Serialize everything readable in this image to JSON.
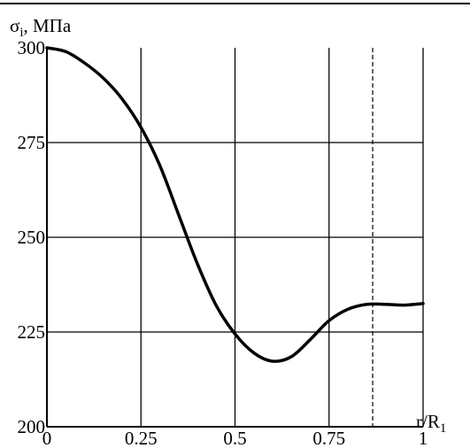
{
  "chart_data": {
    "type": "line",
    "title": "",
    "ylabel": {
      "symbol": "σ",
      "subscript": "i",
      "unit": ", МПа"
    },
    "xlabel": {
      "main": "r/R",
      "subscript": "1"
    },
    "xlim": [
      0,
      1
    ],
    "ylim": [
      200,
      300
    ],
    "x_ticks": [
      0,
      0.25,
      0.5,
      0.75,
      1
    ],
    "x_tick_labels": [
      "0",
      "0.25",
      "0.5",
      "0.75",
      "1"
    ],
    "y_ticks": [
      200,
      225,
      250,
      275,
      300
    ],
    "y_tick_labels": [
      "200",
      "225",
      "250",
      "275",
      "300"
    ],
    "grid": true,
    "reference_line": {
      "x": 0.866,
      "style": "dashed"
    },
    "series": [
      {
        "x": [
          0,
          0.05,
          0.1,
          0.15,
          0.2,
          0.25,
          0.3,
          0.35,
          0.4,
          0.45,
          0.5,
          0.55,
          0.6,
          0.65,
          0.7,
          0.75,
          0.8,
          0.85,
          0.9,
          0.95,
          1
        ],
        "y": [
          300,
          299,
          296,
          292,
          286.5,
          279,
          269,
          256,
          243,
          232,
          224.5,
          219.5,
          217.3,
          218.5,
          223,
          228,
          231,
          232.3,
          232.3,
          232.1,
          232.5
        ],
        "color": "#000000"
      }
    ]
  }
}
